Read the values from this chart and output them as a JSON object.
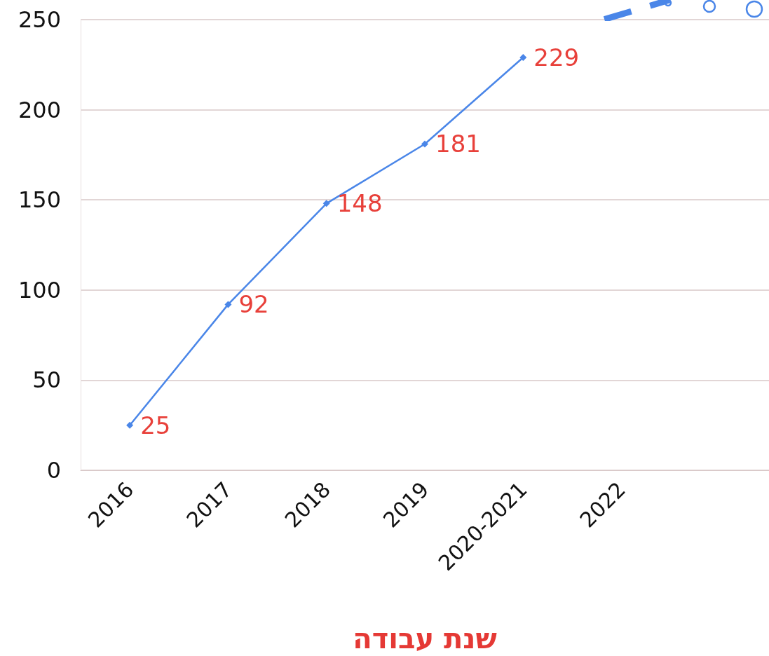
{
  "chart_data": {
    "type": "line",
    "xlabel": "שנת עבודה",
    "categories": [
      "2016",
      "2017",
      "2018",
      "2019",
      "2020-2021",
      "2022",
      null
    ],
    "series": [
      {
        "color": "#4a86e8",
        "values": [
          25,
          92,
          148,
          181,
          229,
          null,
          null
        ]
      }
    ],
    "ylim": [
      0,
      250
    ],
    "yticks": [
      0,
      50,
      100,
      150,
      200,
      250
    ],
    "grid": "y",
    "marker": "diamond",
    "line_style": "solid",
    "data_labels": true
  }
}
